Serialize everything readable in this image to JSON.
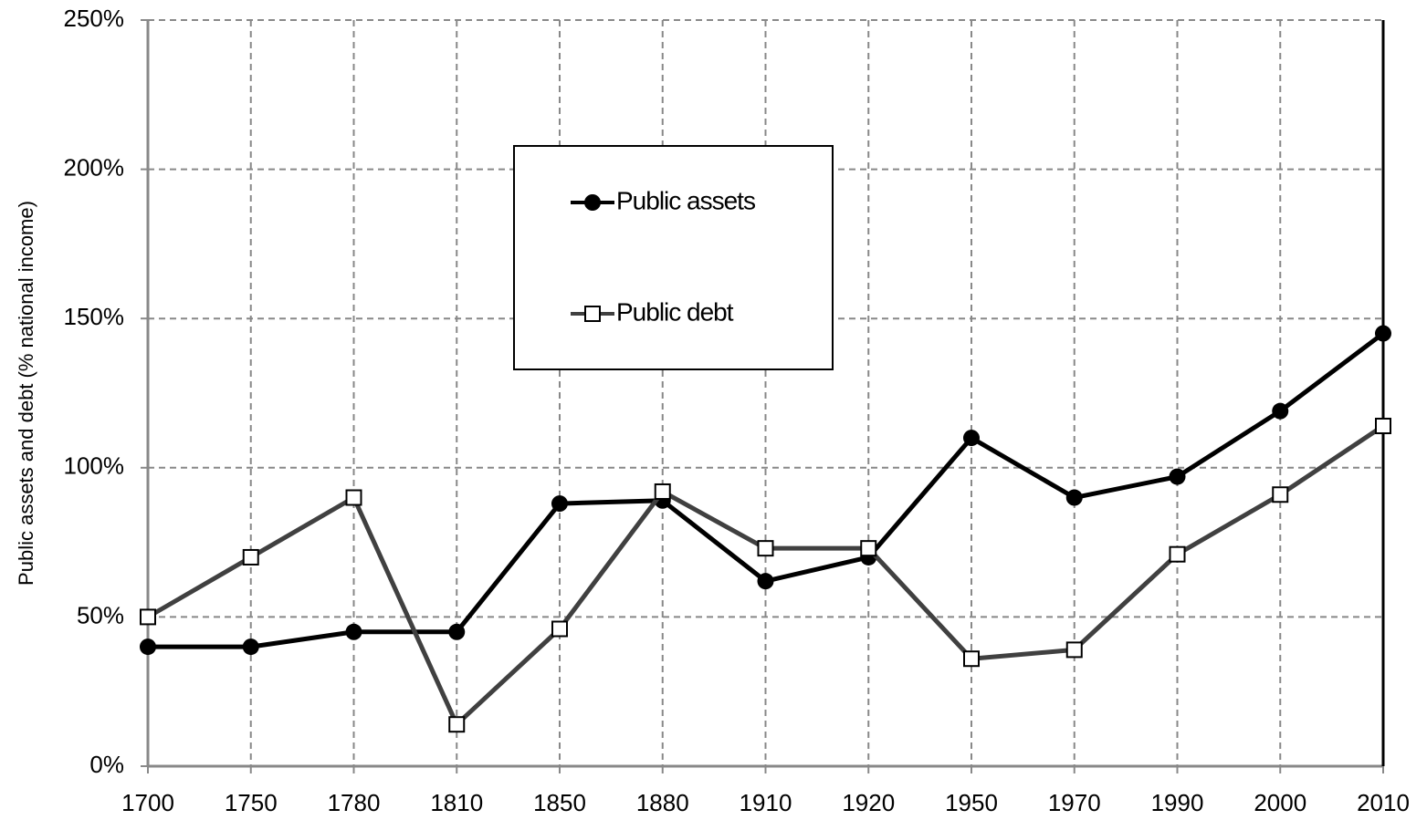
{
  "chart_data": {
    "type": "line",
    "y_label": "Public assets and debt (% national income)",
    "categories": [
      "1700",
      "1750",
      "1780",
      "1810",
      "1850",
      "1880",
      "1910",
      "1920",
      "1950",
      "1970",
      "1990",
      "2000",
      "2010"
    ],
    "series": [
      {
        "name": "Public assets",
        "color": "#000000",
        "marker": "circle",
        "values": [
          40,
          40,
          45,
          45,
          88,
          89,
          62,
          70,
          110,
          90,
          97,
          119,
          145
        ]
      },
      {
        "name": "Public debt",
        "color": "#404040",
        "marker": "square",
        "values": [
          50,
          70,
          90,
          14,
          46,
          92,
          73,
          73,
          36,
          39,
          71,
          91,
          114
        ]
      }
    ],
    "ylim": [
      0,
      250
    ],
    "yticks": [
      {
        "value": 0,
        "label": "0%"
      },
      {
        "value": 50,
        "label": "50%"
      },
      {
        "value": 100,
        "label": "100%"
      },
      {
        "value": 150,
        "label": "150%"
      },
      {
        "value": 200,
        "label": "200%"
      },
      {
        "value": 250,
        "label": "250%"
      }
    ],
    "grid": true,
    "legend": "upper center"
  }
}
